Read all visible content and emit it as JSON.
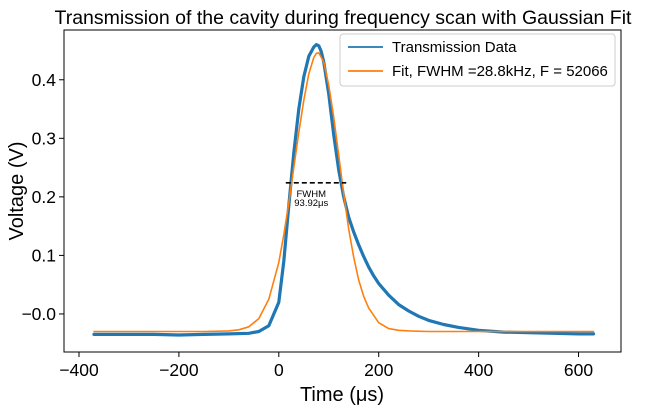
{
  "chart_data": {
    "type": "line",
    "title": "Transmission of the cavity during frequency scan with Gaussian Fit",
    "xlabel": "Time (μs)",
    "ylabel": "Voltage (V)",
    "xlim": [
      -430,
      685
    ],
    "ylim": [
      -0.065,
      0.485
    ],
    "x_ticks": [
      -400,
      -200,
      0,
      200,
      400,
      600
    ],
    "x_tick_labels": [
      "−400",
      "−200",
      "0",
      "200",
      "400",
      "600"
    ],
    "y_ticks": [
      0.0,
      0.1,
      0.2,
      0.3,
      0.4
    ],
    "y_tick_labels": [
      "−0.0",
      "0.1",
      "0.2",
      "0.3",
      "0.4"
    ],
    "grid": false,
    "legend_position": "top-right",
    "series": [
      {
        "name": "Transmission Data",
        "color": "#1f77b4",
        "x": [
          -370,
          -300,
          -250,
          -200,
          -150,
          -100,
          -60,
          -40,
          -20,
          0,
          10,
          20,
          30,
          40,
          50,
          60,
          70,
          75,
          80,
          85,
          90,
          100,
          110,
          120,
          130,
          140,
          150,
          160,
          170,
          180,
          190,
          200,
          220,
          240,
          260,
          280,
          300,
          330,
          360,
          400,
          450,
          500,
          550,
          600,
          630
        ],
        "y": [
          -0.035,
          -0.035,
          -0.035,
          -0.036,
          -0.035,
          -0.034,
          -0.033,
          -0.03,
          -0.02,
          0.02,
          0.09,
          0.185,
          0.275,
          0.35,
          0.405,
          0.44,
          0.456,
          0.46,
          0.458,
          0.448,
          0.43,
          0.375,
          0.305,
          0.245,
          0.2,
          0.165,
          0.14,
          0.118,
          0.098,
          0.08,
          0.065,
          0.052,
          0.032,
          0.016,
          0.005,
          -0.004,
          -0.011,
          -0.018,
          -0.023,
          -0.028,
          -0.031,
          -0.032,
          -0.033,
          -0.034,
          -0.034
        ]
      },
      {
        "name": "Fit, FWHM =28.8kHz, F = 52066",
        "color": "#ff7f0e",
        "x": [
          -370,
          -300,
          -200,
          -150,
          -100,
          -80,
          -60,
          -40,
          -20,
          0,
          10,
          20,
          30,
          40,
          50,
          60,
          70,
          75,
          80,
          90,
          100,
          110,
          120,
          130,
          140,
          150,
          160,
          170,
          180,
          200,
          220,
          240,
          260,
          300,
          400,
          500,
          630
        ],
        "y": [
          -0.03,
          -0.03,
          -0.03,
          -0.03,
          -0.029,
          -0.027,
          -0.022,
          -0.008,
          0.025,
          0.088,
          0.135,
          0.19,
          0.25,
          0.31,
          0.365,
          0.41,
          0.438,
          0.445,
          0.446,
          0.43,
          0.39,
          0.335,
          0.27,
          0.205,
          0.145,
          0.097,
          0.058,
          0.03,
          0.01,
          -0.015,
          -0.025,
          -0.028,
          -0.029,
          -0.03,
          -0.03,
          -0.03,
          -0.03
        ]
      }
    ],
    "annotation": {
      "text_line1": "FWHM",
      "text_line2": "93.92μs",
      "x_start": 14,
      "x_end": 135,
      "y": 0.224,
      "label_x": 65,
      "label_y1": 0.2,
      "label_y2": 0.184
    }
  }
}
